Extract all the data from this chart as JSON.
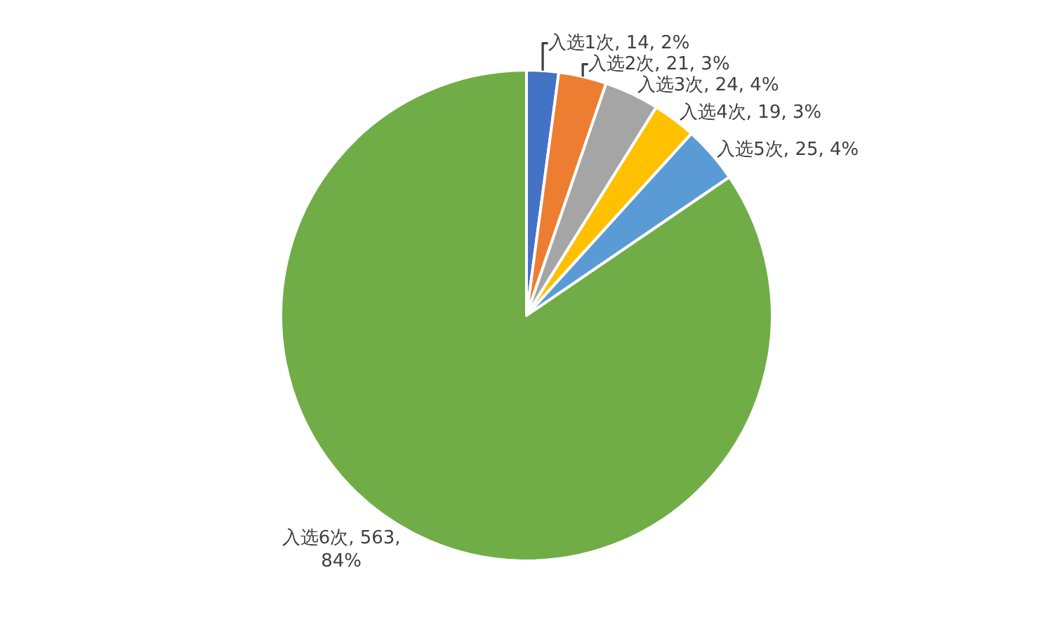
{
  "chart_data": {
    "type": "pie",
    "categories": [
      "入选1次",
      "入选2次",
      "入选3次",
      "入选4次",
      "入选5次",
      "入选6次"
    ],
    "values": [
      14,
      21,
      24,
      19,
      25,
      563
    ],
    "colors": [
      "#4472c4",
      "#ed7d31",
      "#a5a5a5",
      "#ffc000",
      "#5b9bd5",
      "#70ad47"
    ],
    "value_labels": [
      "14, 2%",
      "21, 3%",
      "24, 4%",
      "19, 3%",
      "25, 4%",
      "563,\n84%"
    ]
  }
}
